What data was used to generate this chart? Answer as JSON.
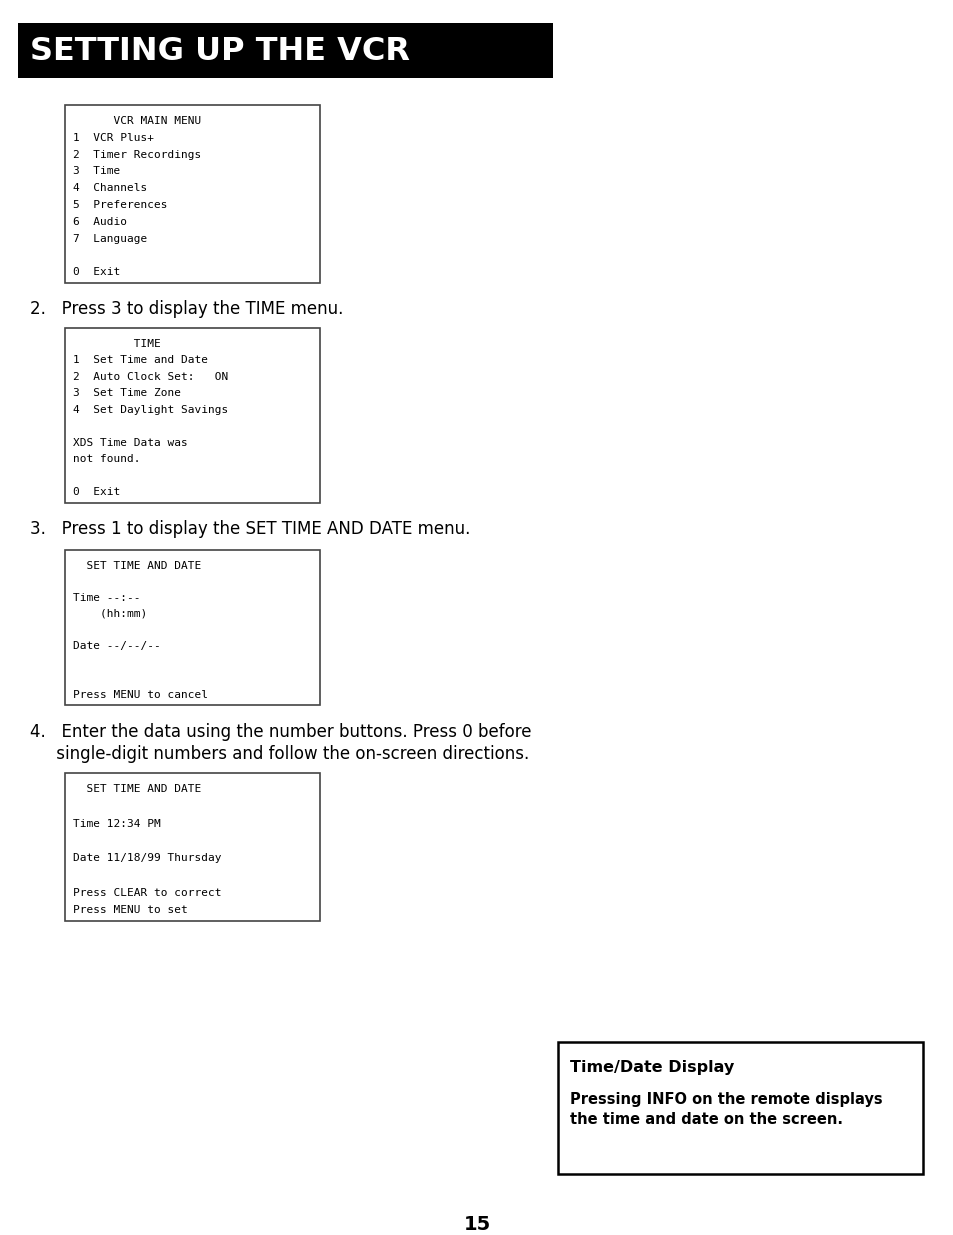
{
  "title": "SETTING UP THE VCR",
  "title_bg": "#000000",
  "title_color": "#ffffff",
  "page_bg": "#ffffff",
  "page_number": "15",
  "step2_text": "2.   Press 3 to display the TIME menu.",
  "step3_text": "3.   Press 1 to display the SET TIME AND DATE menu.",
  "step4_text_line1": "4.   Enter the data using the number buttons. Press 0 before",
  "step4_text_line2": "     single-digit numbers and follow the on-screen directions.",
  "box1_lines": [
    "      VCR MAIN MENU",
    "1  VCR Plus+",
    "2  Timer Recordings",
    "3  Time",
    "4  Channels",
    "5  Preferences",
    "6  Audio",
    "7  Language",
    "",
    "0  Exit"
  ],
  "box2_lines": [
    "         TIME",
    "1  Set Time and Date",
    "2  Auto Clock Set:   ON",
    "3  Set Time Zone",
    "4  Set Daylight Savings",
    "",
    "XDS Time Data was",
    "not found.",
    "",
    "0  Exit"
  ],
  "box3_lines": [
    "  SET TIME AND DATE",
    "",
    "Time --:--",
    "    (hh:mm)",
    "",
    "Date --/--/--",
    "",
    "",
    "Press MENU to cancel"
  ],
  "box4_lines": [
    "  SET TIME AND DATE",
    "",
    "Time 12:34 PM",
    "",
    "Date 11/18/99 Thursday",
    "",
    "Press CLEAR to correct",
    "Press MENU to set"
  ],
  "sidebar_title": "Time/Date Display",
  "sidebar_body": "Pressing INFO on the remote displays\nthe time and date on the screen."
}
